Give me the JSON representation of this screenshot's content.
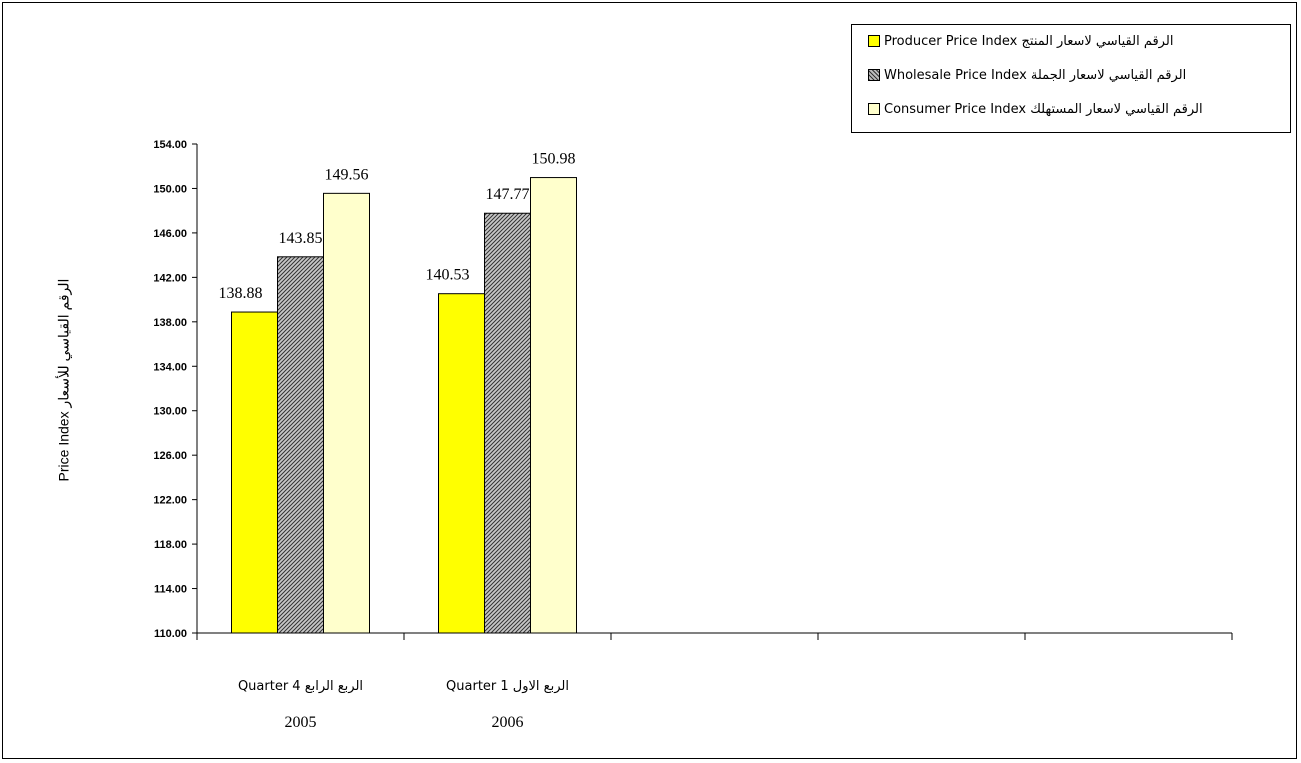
{
  "chart_data": {
    "type": "bar",
    "categories": [
      "Quarter 4  الربع الرابع",
      "Quarter 1  الربع الاول"
    ],
    "category_years": [
      "2005",
      "2006"
    ],
    "series": [
      {
        "name": "Producer Price Index الرقم القياسي لاسعار المنتج",
        "values": [
          138.88,
          140.53
        ],
        "color": "#ffff00",
        "pattern": "solid"
      },
      {
        "name": "Wholesale Price Index الرقم القياسي لاسعار الجملة",
        "values": [
          143.85,
          147.77
        ],
        "color": "#808080",
        "pattern": "hatched"
      },
      {
        "name": "Consumer Price Index الرقم القياسي لاسعار المستهلك",
        "values": [
          149.56,
          150.98
        ],
        "color": "#ffffcc",
        "pattern": "solid"
      }
    ],
    "data_labels": [
      [
        "138.88",
        "140.53"
      ],
      [
        "143.85",
        "147.77"
      ],
      [
        "149.56",
        "150.98"
      ]
    ],
    "ylabel": "Price Index  الرقم القياسي للأسعار",
    "ylim": [
      110,
      154
    ],
    "yticks": [
      "110.00",
      "114.00",
      "118.00",
      "122.00",
      "126.00",
      "130.00",
      "134.00",
      "138.00",
      "142.00",
      "146.00",
      "150.00",
      "154.00"
    ],
    "x_slots": 5,
    "grid": false,
    "legend": "top-right"
  }
}
